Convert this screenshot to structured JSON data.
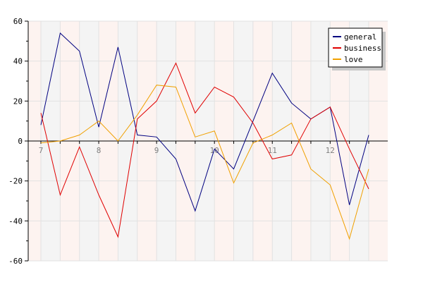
{
  "chart_data": {
    "type": "line",
    "title": "",
    "xlabel": "",
    "ylabel": "",
    "ylim": [
      -60,
      60
    ],
    "yticks": [
      -60,
      -40,
      -20,
      0,
      20,
      40,
      60
    ],
    "x_tick_labels": [
      {
        "index": 0,
        "label": "7"
      },
      {
        "index": 3,
        "label": "8"
      },
      {
        "index": 6,
        "label": "9"
      },
      {
        "index": 9,
        "label": "10"
      },
      {
        "index": 12,
        "label": "11"
      },
      {
        "index": 15,
        "label": "12"
      }
    ],
    "point_count": 18,
    "grid": true,
    "legend_position": "top-right",
    "series": [
      {
        "name": "general",
        "color": "#000080",
        "values": [
          8,
          54,
          45,
          7,
          47,
          3,
          2,
          -9,
          -35,
          -4,
          -14,
          10,
          34,
          19,
          11,
          17,
          -32,
          3
        ]
      },
      {
        "name": "business",
        "color": "#e00000",
        "values": [
          14,
          -27,
          -3,
          -27,
          -48,
          11,
          20,
          39,
          14,
          27,
          22,
          9,
          -9,
          -7,
          11,
          17,
          -4,
          -24
        ]
      },
      {
        "name": "love",
        "color": "#f0a000",
        "values": [
          -1,
          0,
          3,
          10,
          0,
          13,
          28,
          27,
          2,
          5,
          -21,
          -1,
          3,
          9,
          -14,
          -22,
          -49,
          -14
        ]
      }
    ]
  }
}
